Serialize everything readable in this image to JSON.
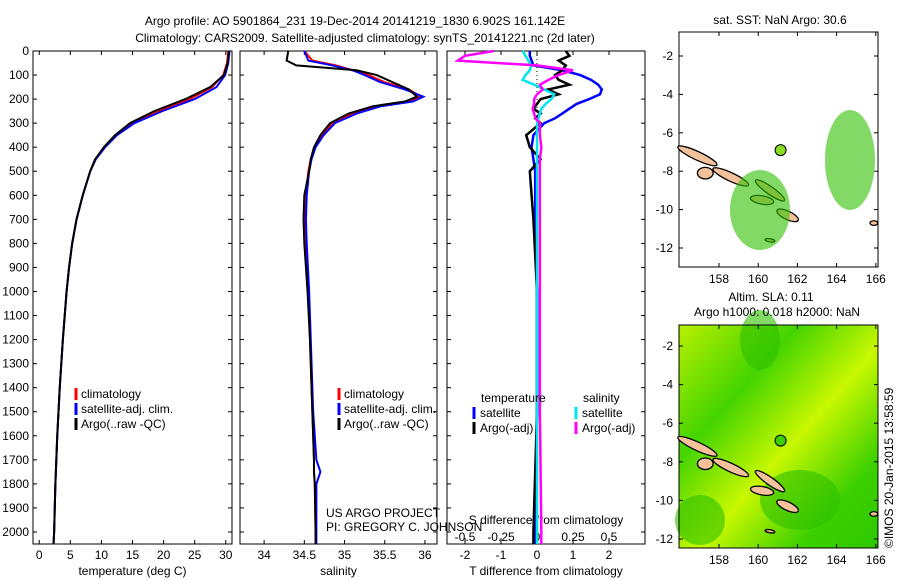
{
  "title_line1": "Argo profile: AO 5901864_231 19-Dec-2014 20141219_1830 6.902S 161.142E",
  "title_line2": "Climatology: CARS2009. Satellite-adjusted climatology: synTS_20141221.nc (2d later)",
  "colors": {
    "climatology": "#ff0000",
    "satellite": "#0000ff",
    "argo": "#000000",
    "sal_satellite": "#00e5ee",
    "sal_argo": "#ff00ff",
    "land": "#f4c29a"
  },
  "chart_data": [
    {
      "type": "line",
      "name": "temperature",
      "xlabel": "temperature (deg C)",
      "xlim": [
        -1,
        31
      ],
      "ylim": [
        2050,
        0
      ],
      "xticks": [
        "0",
        "5",
        "10",
        "15",
        "20",
        "25",
        "30"
      ],
      "xtick_vals": [
        0,
        5,
        10,
        15,
        20,
        25,
        30
      ],
      "yticks": [
        "0",
        "100",
        "200",
        "300",
        "400",
        "500",
        "600",
        "700",
        "800",
        "900",
        "1000",
        "1100",
        "1200",
        "1300",
        "1400",
        "1500",
        "1600",
        "1700",
        "1800",
        "1900",
        "2000"
      ],
      "depth": [
        0,
        50,
        100,
        150,
        200,
        250,
        300,
        350,
        400,
        450,
        500,
        600,
        700,
        800,
        900,
        1000,
        1200,
        1400,
        1600,
        1800,
        2000,
        2050
      ],
      "series": [
        {
          "name": "climatology",
          "color": "#ff0000",
          "values": [
            30.4,
            30.2,
            29.6,
            27.8,
            24.2,
            19.2,
            15.0,
            12.4,
            10.5,
            9.0,
            8.2,
            7.0,
            6.0,
            5.3,
            4.8,
            4.4,
            3.8,
            3.3,
            2.9,
            2.6,
            2.4,
            2.3
          ]
        },
        {
          "name": "satellite-adj. clim.",
          "color": "#0000ff",
          "values": [
            30.6,
            30.4,
            29.9,
            28.5,
            25.0,
            19.8,
            15.3,
            12.5,
            10.6,
            9.1,
            8.2,
            7.0,
            6.0,
            5.3,
            4.8,
            4.4,
            3.8,
            3.3,
            2.9,
            2.6,
            2.4,
            2.3
          ]
        },
        {
          "name": "Argo(..raw -QC)",
          "color": "#000000",
          "values": [
            30.5,
            30.3,
            29.7,
            27.5,
            23.5,
            18.5,
            14.6,
            12.2,
            10.4,
            9.0,
            8.2,
            7.0,
            6.0,
            5.3,
            4.8,
            4.4,
            3.8,
            3.3,
            2.9,
            2.6,
            2.4,
            2.3
          ]
        }
      ],
      "legend": [
        "climatology",
        "satellite-adj. clim.",
        "Argo(..raw -QC)"
      ]
    },
    {
      "type": "line",
      "name": "salinity",
      "xlabel": "salinity",
      "xlim": [
        33.7,
        36.15
      ],
      "ylim": [
        2050,
        0
      ],
      "xticks": [
        "34",
        "34.5",
        "35",
        "35.5",
        "36"
      ],
      "xtick_vals": [
        34,
        34.5,
        35,
        35.5,
        36
      ],
      "depth": [
        0,
        40,
        60,
        80,
        100,
        130,
        160,
        190,
        210,
        230,
        260,
        300,
        350,
        400,
        450,
        500,
        600,
        700,
        800,
        1000,
        1200,
        1500,
        1700,
        1750,
        1800,
        2000,
        2050
      ],
      "series": [
        {
          "name": "climatology",
          "color": "#ff0000",
          "values": [
            34.5,
            34.6,
            34.9,
            35.1,
            35.3,
            35.5,
            35.8,
            35.95,
            35.8,
            35.4,
            35.1,
            34.85,
            34.72,
            34.63,
            34.58,
            34.55,
            34.52,
            34.51,
            34.52,
            34.55,
            34.57,
            34.6,
            34.62,
            34.62,
            34.63,
            34.64,
            34.64
          ]
        },
        {
          "name": "satellite-adj. clim.",
          "color": "#0000ff",
          "values": [
            34.5,
            34.55,
            34.85,
            35.1,
            35.25,
            35.45,
            35.75,
            35.98,
            35.85,
            35.45,
            35.15,
            34.88,
            34.74,
            34.64,
            34.59,
            34.56,
            34.53,
            34.52,
            34.53,
            34.56,
            34.58,
            34.61,
            34.65,
            34.7,
            34.65,
            34.65,
            34.65
          ]
        },
        {
          "name": "Argo(..raw -QC)",
          "color": "#000000",
          "values": [
            34.3,
            34.28,
            34.4,
            35.15,
            35.4,
            35.6,
            35.8,
            35.9,
            35.75,
            35.35,
            35.05,
            34.82,
            34.7,
            34.62,
            34.58,
            34.56,
            34.5,
            34.49,
            34.5,
            34.54,
            34.57,
            34.6,
            34.62,
            34.62,
            34.63,
            34.64,
            34.64
          ]
        }
      ],
      "legend": [
        "climatology",
        "satellite-adj. clim.",
        "Argo(..raw -QC)"
      ],
      "annotation": [
        "US ARGO PROJECT",
        "PI: GREGORY C. JOHNSON"
      ]
    },
    {
      "type": "line",
      "name": "difference",
      "xlabel": "T difference from climatology",
      "xlabel2": "S difference from climatology",
      "xlim_T": [
        -2.5,
        3
      ],
      "xlim_S": [
        -0.625,
        0.75
      ],
      "ylim": [
        2050,
        0
      ],
      "xticks_T": [
        "-2",
        "-1",
        "0",
        "1",
        "2"
      ],
      "xtick_vals_T": [
        -2,
        -1,
        0,
        1,
        2
      ],
      "xticks_S": [
        "-0.5",
        "-0.25",
        "0",
        "0.25",
        "0.5"
      ],
      "xtick_vals_S": [
        -0.5,
        -0.25,
        0,
        0.25,
        0.5
      ],
      "depth": [
        0,
        20,
        40,
        60,
        80,
        100,
        120,
        140,
        160,
        180,
        200,
        220,
        240,
        260,
        280,
        300,
        350,
        400,
        450,
        500,
        700,
        1000,
        1500,
        2000,
        2050
      ],
      "series": [
        {
          "name": "temperature satellite",
          "units": "T",
          "color": "#0000ff",
          "values": [
            -0.2,
            -0.2,
            -0.15,
            -0.1,
            0.7,
            1.2,
            1.5,
            1.7,
            1.8,
            1.75,
            1.45,
            1.1,
            0.9,
            0.7,
            0.5,
            0.2,
            -0.1,
            -0.15,
            -0.1,
            -0.05,
            -0.05,
            0,
            0,
            -0.05,
            -0.05
          ]
        },
        {
          "name": "temperature Argo(-adj)",
          "units": "T",
          "color": "#000000",
          "values": [
            0.8,
            0.9,
            0.6,
            0.8,
            0.7,
            0.5,
            0.6,
            0.9,
            0.3,
            0.6,
            0.1,
            0.0,
            -0.1,
            0.1,
            -0.05,
            0.1,
            -0.3,
            -0.2,
            0.1,
            -0.2,
            -0.1,
            0,
            0,
            -0.1,
            -0.1
          ]
        },
        {
          "name": "salinity satellite",
          "units": "S",
          "color": "#00e5ee",
          "values": [
            -0.1,
            -0.08,
            -0.06,
            -0.04,
            -0.05,
            -0.08,
            -0.1,
            -0.02,
            0.05,
            0.12,
            0.1,
            0.06,
            0.03,
            0.02,
            0.01,
            0.0,
            0.0,
            0.0,
            0.0,
            0.0,
            0.0,
            0.0,
            0.0,
            0.0,
            0.0
          ]
        },
        {
          "name": "salinity Argo(-adj)",
          "units": "S",
          "color": "#ff00ff",
          "values": [
            -0.3,
            -0.5,
            -0.55,
            0.0,
            0.25,
            0.15,
            0.08,
            0.02,
            0.04,
            0.0,
            -0.02,
            -0.02,
            -0.03,
            -0.02,
            -0.01,
            0.02,
            0.02,
            0.03,
            0.02,
            0.02,
            0.02,
            0.02,
            0.02,
            0.03,
            0.03
          ]
        }
      ],
      "legend": {
        "temperature_header": "temperature",
        "salinity_header": "salinity",
        "satellite": "satellite",
        "argo": "Argo(-adj)"
      }
    },
    {
      "type": "map",
      "name": "sst-map",
      "title": "sat. SST: NaN Argo: 30.6",
      "xticks": [
        "158",
        "160",
        "162",
        "164",
        "166"
      ],
      "yticks": [
        "-2",
        "-4",
        "-6",
        "-8",
        "-10",
        "-12"
      ],
      "float_lon": 161.142,
      "float_lat": -6.902
    },
    {
      "type": "map",
      "name": "sla-map",
      "title": [
        "Altim. SLA: 0.11",
        "Argo h1000: 0.018 h2000: NaN"
      ],
      "xticks": [
        "158",
        "160",
        "162",
        "164",
        "166"
      ],
      "yticks": [
        "-2",
        "-4",
        "-6",
        "-8",
        "-10",
        "-12"
      ],
      "float_lon": 161.142,
      "float_lat": -6.902
    }
  ],
  "credit": "©IMOS 20-Jan-2015 13:58:59"
}
